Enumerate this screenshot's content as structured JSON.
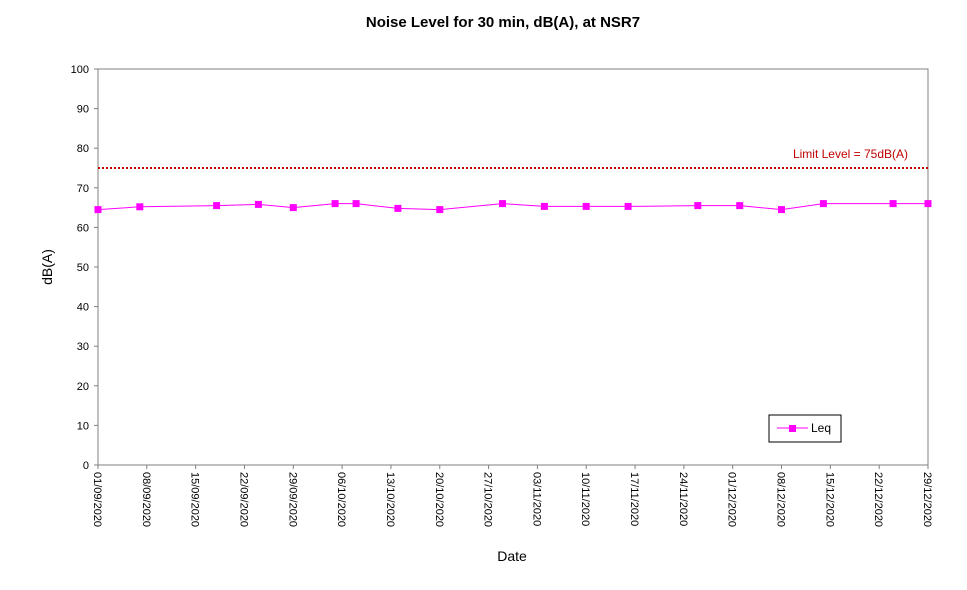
{
  "chart_data": {
    "type": "line",
    "title": "Noise Level for 30 min, dB(A), at NSR7",
    "xlabel": "Date",
    "ylabel": "dB(A)",
    "ylim": [
      0,
      100
    ],
    "yticks": [
      0,
      10,
      20,
      30,
      40,
      50,
      60,
      70,
      80,
      90,
      100
    ],
    "xlim": [
      "2020-09-01",
      "2020-12-29"
    ],
    "xticks": [
      "01/09/2020",
      "08/09/2020",
      "15/09/2020",
      "22/09/2020",
      "29/09/2020",
      "06/10/2020",
      "13/10/2020",
      "20/10/2020",
      "27/10/2020",
      "03/11/2020",
      "10/11/2020",
      "17/11/2020",
      "24/11/2020",
      "01/12/2020",
      "08/12/2020",
      "15/12/2020",
      "22/12/2020",
      "29/12/2020"
    ],
    "grid": false,
    "legend_position": "bottom-right",
    "limit": {
      "label": "Limit Level  = 75dB(A)",
      "value": 75,
      "color": "#c00000"
    },
    "series": [
      {
        "name": "Leq",
        "color": "#ff00ff",
        "x": [
          "2020-09-01",
          "2020-09-07",
          "2020-09-18",
          "2020-09-24",
          "2020-09-29",
          "2020-10-05",
          "2020-10-08",
          "2020-10-14",
          "2020-10-20",
          "2020-10-29",
          "2020-11-04",
          "2020-11-10",
          "2020-11-16",
          "2020-11-26",
          "2020-12-02",
          "2020-12-08",
          "2020-12-14",
          "2020-12-24",
          "2020-12-29"
        ],
        "y": [
          64.5,
          65.2,
          65.5,
          65.8,
          65.0,
          66.0,
          66.0,
          64.8,
          64.5,
          66.0,
          65.3,
          65.3,
          65.3,
          65.5,
          65.5,
          64.5,
          66.0,
          66.0,
          66.0
        ]
      }
    ]
  }
}
